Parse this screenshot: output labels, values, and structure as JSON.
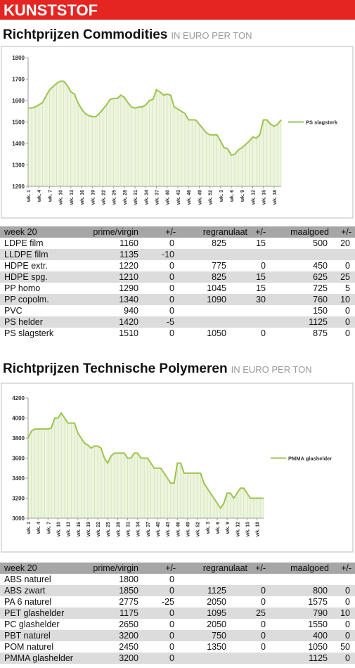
{
  "header": "KUNSTSTOF",
  "chart_data": [
    {
      "type": "line",
      "title": "Richtprijzen Commodities",
      "subtitle": "IN EURO PER TON",
      "categories": [
        "wk. 1",
        null,
        null,
        "wk. 4",
        null,
        null,
        "wk. 7",
        null,
        null,
        "wk. 10",
        null,
        null,
        "wk. 13",
        null,
        null,
        "wk. 16",
        null,
        null,
        "wk. 19",
        null,
        null,
        "wk. 22",
        null,
        null,
        "wk. 25",
        null,
        null,
        "wk. 28",
        null,
        null,
        "wk. 31",
        null,
        null,
        "wk. 34",
        null,
        null,
        "wk. 37",
        null,
        null,
        "wk. 40",
        null,
        null,
        "wk. 43",
        null,
        null,
        "wk. 46",
        null,
        null,
        "wk. 49",
        null,
        null,
        "wk. 52",
        null,
        null,
        "wk. 3",
        null,
        null,
        "wk. 6",
        null,
        null,
        "wk. 9",
        null,
        null,
        "wk. 12",
        null,
        null,
        "wk. 15",
        null,
        null,
        "wk. 18",
        null,
        null
      ],
      "series": [
        {
          "name": "PS slagsterk",
          "color": "#9bc34f",
          "values": [
            1565,
            1565,
            1570,
            1580,
            1590,
            1620,
            1650,
            1665,
            1680,
            1690,
            1690,
            1670,
            1640,
            1630,
            1590,
            1560,
            1540,
            1530,
            1525,
            1525,
            1540,
            1560,
            1580,
            1605,
            1610,
            1610,
            1625,
            1615,
            1590,
            1570,
            1565,
            1570,
            1570,
            1580,
            1600,
            1605,
            1650,
            1640,
            1625,
            1630,
            1625,
            1570,
            1560,
            1550,
            1540,
            1510,
            1510,
            1510,
            1490,
            1470,
            1450,
            1440,
            1440,
            1440,
            1410,
            1380,
            1375,
            1345,
            1350,
            1370,
            1380,
            1395,
            1410,
            1430,
            1425,
            1440,
            1510,
            1510,
            1490,
            1480,
            1490,
            1510
          ]
        }
      ],
      "ylim": [
        1200,
        1800
      ],
      "yticks": [
        1200,
        1300,
        1400,
        1500,
        1600,
        1700,
        1800
      ],
      "legend": "right"
    },
    {
      "type": "line",
      "title": "Richtprijzen Technische Polymeren",
      "subtitle": "IN EURO PER TON",
      "categories": [
        "wk. 1",
        null,
        null,
        "wk. 4",
        null,
        null,
        "wk. 7",
        null,
        null,
        "wk. 10",
        null,
        null,
        "wk. 13",
        null,
        null,
        "wk. 16",
        null,
        null,
        "wk. 19",
        null,
        null,
        "wk. 22",
        null,
        null,
        "wk. 25",
        null,
        null,
        "wk. 28",
        null,
        null,
        "wk. 31",
        null,
        null,
        "wk. 34",
        null,
        null,
        "wk. 37",
        null,
        null,
        "wk. 40",
        null,
        null,
        "wk. 43",
        null,
        null,
        "wk. 46",
        null,
        null,
        "wk. 49",
        null,
        null,
        "wk. 52",
        null,
        null,
        "wk. 3",
        null,
        null,
        "wk. 6",
        null,
        null,
        "wk. 9",
        null,
        null,
        "wk. 12",
        null,
        null,
        "wk. 15",
        null,
        null,
        "wk. 18",
        null,
        null
      ],
      "series": [
        {
          "name": "PMMA glashelder",
          "color": "#9bc34f",
          "values": [
            3800,
            3870,
            3890,
            3890,
            3890,
            3890,
            3890,
            3900,
            4000,
            4000,
            4050,
            4000,
            3950,
            3950,
            3950,
            3850,
            3800,
            3750,
            3730,
            3700,
            3720,
            3720,
            3700,
            3600,
            3550,
            3620,
            3650,
            3650,
            3650,
            3650,
            3600,
            3600,
            3650,
            3650,
            3600,
            3600,
            3600,
            3550,
            3500,
            3500,
            3500,
            3450,
            3400,
            3350,
            3350,
            3550,
            3550,
            3450,
            3450,
            3450,
            3450,
            3450,
            3450,
            3350,
            3300,
            3250,
            3200,
            3150,
            3100,
            3150,
            3250,
            3250,
            3200,
            3250,
            3300,
            3300,
            3250,
            3200,
            3200,
            3200,
            3200,
            3200
          ]
        }
      ],
      "ylim": [
        3000,
        4200
      ],
      "yticks": [
        3000,
        3200,
        3400,
        3600,
        3800,
        4000,
        4200
      ],
      "legend": "right"
    }
  ],
  "tables": [
    {
      "columns": [
        "week 20",
        "prime/virgin",
        "+/-",
        "regranulaat",
        "+/-",
        "maalgoed",
        "+/-"
      ],
      "rows": [
        [
          "LDPE film",
          1160,
          0,
          825,
          15,
          500,
          20
        ],
        [
          "LLDPE film",
          1135,
          -10,
          null,
          null,
          null,
          null
        ],
        [
          "HDPE extr.",
          1220,
          0,
          775,
          0,
          450,
          0
        ],
        [
          "HDPE spg.",
          1210,
          0,
          825,
          15,
          625,
          25
        ],
        [
          "PP homo",
          1290,
          0,
          1045,
          15,
          725,
          5
        ],
        [
          "PP copolm.",
          1340,
          0,
          1090,
          30,
          760,
          10
        ],
        [
          "PVC",
          940,
          0,
          null,
          null,
          150,
          0
        ],
        [
          "PS helder",
          1420,
          -5,
          null,
          null,
          1125,
          0
        ],
        [
          "PS slagsterk",
          1510,
          0,
          1050,
          0,
          875,
          0
        ]
      ]
    },
    {
      "columns": [
        "week 20",
        "prime/virgin",
        "+/-",
        "regranulaat",
        "+/-",
        "maalgoed",
        "+/-"
      ],
      "rows": [
        [
          "ABS naturel",
          1800,
          0,
          null,
          null,
          null,
          null
        ],
        [
          "ABS zwart",
          1850,
          0,
          1125,
          0,
          800,
          0
        ],
        [
          "PA 6 naturel",
          2775,
          -25,
          2050,
          0,
          1575,
          0
        ],
        [
          "PET glashelder",
          1175,
          0,
          1095,
          25,
          790,
          10
        ],
        [
          "PC glashelder",
          2650,
          0,
          2050,
          0,
          1550,
          0
        ],
        [
          "PBT naturel",
          3200,
          0,
          750,
          0,
          400,
          0
        ],
        [
          "POM naturel",
          2450,
          0,
          1350,
          0,
          1050,
          50
        ],
        [
          "PMMA glashelder",
          3200,
          0,
          null,
          null,
          1125,
          0
        ]
      ]
    }
  ]
}
